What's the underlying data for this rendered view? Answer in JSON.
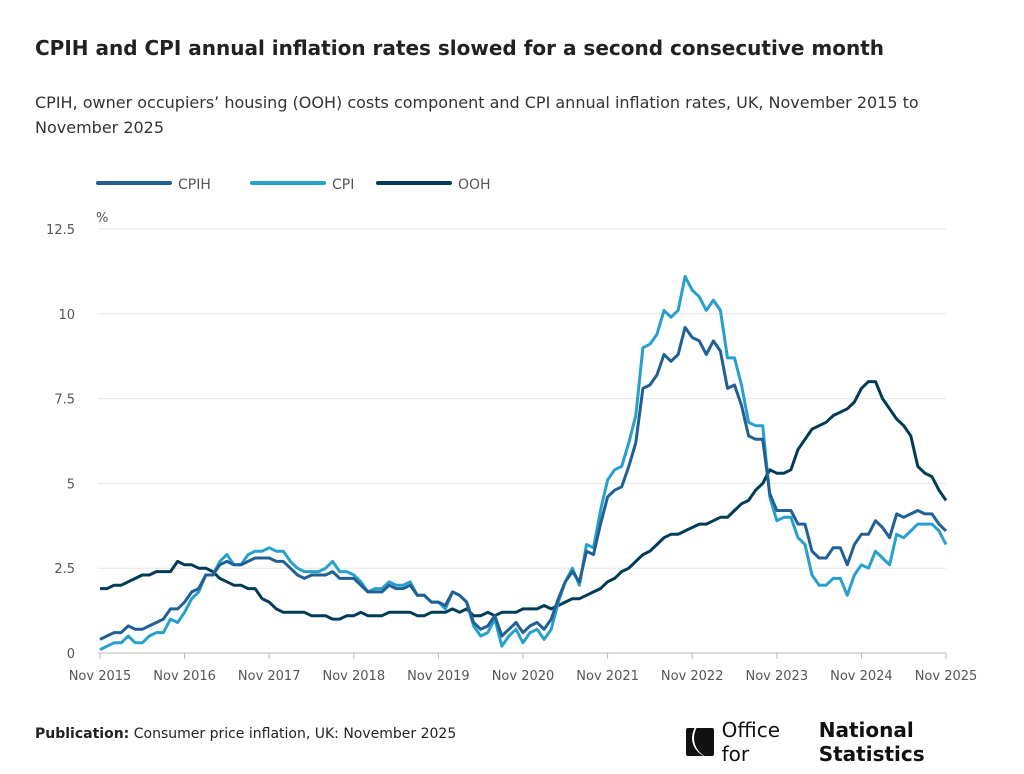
{
  "title": "CPIH and CPI annual inflation rates slowed for a second consecutive month",
  "subtitle": "CPIH, owner occupiers’ housing (OOH) costs component and CPI annual inflation rates, UK, November 2015 to November 2025",
  "footer": {
    "label": "Publication:",
    "text": "Consumer price inflation, UK: November 2025"
  },
  "logo": {
    "regular": "Office for",
    "bold": "National Statistics"
  },
  "chart_data": {
    "type": "line",
    "ylabel": "%",
    "ylim": [
      0,
      12.5
    ],
    "yticks": [
      "0",
      "2.5",
      "5",
      "7.5",
      "10",
      "12.5"
    ],
    "ytick_values": [
      0,
      2.5,
      5,
      7.5,
      10,
      12.5
    ],
    "xticks": [
      "Nov 2015",
      "Nov 2016",
      "Nov 2017",
      "Nov 2018",
      "Nov 2019",
      "Nov 2020",
      "Nov 2021",
      "Nov 2022",
      "Nov 2023",
      "Nov 2024",
      "Nov 2025"
    ],
    "x_start": "Nov 2015",
    "x_end": "Nov 2025",
    "frequency": "monthly",
    "grid": true,
    "legend_position": "top-left",
    "series": [
      {
        "name": "CPIH",
        "color": "#206095",
        "values": [
          0.4,
          0.5,
          0.6,
          0.6,
          0.8,
          0.7,
          0.7,
          0.8,
          0.9,
          1.0,
          1.3,
          1.3,
          1.5,
          1.8,
          1.9,
          2.3,
          2.3,
          2.6,
          2.7,
          2.6,
          2.6,
          2.7,
          2.8,
          2.8,
          2.8,
          2.7,
          2.7,
          2.5,
          2.3,
          2.2,
          2.3,
          2.3,
          2.3,
          2.4,
          2.2,
          2.2,
          2.2,
          2.0,
          1.8,
          1.8,
          1.8,
          2.0,
          1.9,
          1.9,
          2.0,
          1.7,
          1.7,
          1.5,
          1.5,
          1.4,
          1.8,
          1.7,
          1.5,
          0.9,
          0.7,
          0.8,
          1.1,
          0.5,
          0.7,
          0.9,
          0.6,
          0.8,
          0.9,
          0.7,
          1.0,
          1.6,
          2.1,
          2.4,
          2.1,
          3.0,
          2.9,
          3.8,
          4.6,
          4.8,
          4.9,
          5.5,
          6.2,
          7.8,
          7.9,
          8.2,
          8.8,
          8.6,
          8.8,
          9.6,
          9.3,
          9.2,
          8.8,
          9.2,
          8.9,
          7.8,
          7.9,
          7.3,
          6.4,
          6.3,
          6.3,
          4.7,
          4.2,
          4.2,
          4.2,
          3.8,
          3.8,
          3.0,
          2.8,
          2.8,
          3.1,
          3.1,
          2.6,
          3.2,
          3.5,
          3.5,
          3.9,
          3.7,
          3.4,
          4.1,
          4.0,
          4.1,
          4.2,
          4.1,
          4.1,
          3.8,
          3.6
        ]
      },
      {
        "name": "CPI",
        "color": "#27a0cc",
        "values": [
          0.1,
          0.2,
          0.3,
          0.3,
          0.5,
          0.3,
          0.3,
          0.5,
          0.6,
          0.6,
          1.0,
          0.9,
          1.2,
          1.6,
          1.8,
          2.3,
          2.3,
          2.7,
          2.9,
          2.6,
          2.6,
          2.9,
          3.0,
          3.0,
          3.1,
          3.0,
          3.0,
          2.7,
          2.5,
          2.4,
          2.4,
          2.4,
          2.5,
          2.7,
          2.4,
          2.4,
          2.3,
          2.1,
          1.8,
          1.9,
          1.9,
          2.1,
          2.0,
          2.0,
          2.1,
          1.7,
          1.7,
          1.5,
          1.5,
          1.3,
          1.8,
          1.7,
          1.5,
          0.8,
          0.5,
          0.6,
          1.0,
          0.2,
          0.5,
          0.7,
          0.3,
          0.6,
          0.7,
          0.4,
          0.7,
          1.5,
          2.1,
          2.5,
          2.0,
          3.2,
          3.1,
          4.2,
          5.1,
          5.4,
          5.5,
          6.2,
          7.0,
          9.0,
          9.1,
          9.4,
          10.1,
          9.9,
          10.1,
          11.1,
          10.7,
          10.5,
          10.1,
          10.4,
          10.1,
          8.7,
          8.7,
          7.9,
          6.8,
          6.7,
          6.7,
          4.6,
          3.9,
          4.0,
          4.0,
          3.4,
          3.2,
          2.3,
          2.0,
          2.0,
          2.2,
          2.2,
          1.7,
          2.3,
          2.6,
          2.5,
          3.0,
          2.8,
          2.6,
          3.5,
          3.4,
          3.6,
          3.8,
          3.8,
          3.8,
          3.6,
          3.2
        ]
      },
      {
        "name": "OOH",
        "color": "#003c57",
        "values": [
          1.9,
          1.9,
          2.0,
          2.0,
          2.1,
          2.2,
          2.3,
          2.3,
          2.4,
          2.4,
          2.4,
          2.7,
          2.6,
          2.6,
          2.5,
          2.5,
          2.4,
          2.2,
          2.1,
          2.0,
          2.0,
          1.9,
          1.9,
          1.6,
          1.5,
          1.3,
          1.2,
          1.2,
          1.2,
          1.2,
          1.1,
          1.1,
          1.1,
          1.0,
          1.0,
          1.1,
          1.1,
          1.2,
          1.1,
          1.1,
          1.1,
          1.2,
          1.2,
          1.2,
          1.2,
          1.1,
          1.1,
          1.2,
          1.2,
          1.2,
          1.3,
          1.2,
          1.3,
          1.1,
          1.1,
          1.2,
          1.1,
          1.2,
          1.2,
          1.2,
          1.3,
          1.3,
          1.3,
          1.4,
          1.3,
          1.4,
          1.5,
          1.6,
          1.6,
          1.7,
          1.8,
          1.9,
          2.1,
          2.2,
          2.4,
          2.5,
          2.7,
          2.9,
          3.0,
          3.2,
          3.4,
          3.5,
          3.5,
          3.6,
          3.7,
          3.8,
          3.8,
          3.9,
          4.0,
          4.0,
          4.2,
          4.4,
          4.5,
          4.8,
          5.0,
          5.4,
          5.3,
          5.3,
          5.4,
          6.0,
          6.3,
          6.6,
          6.7,
          6.8,
          7.0,
          7.1,
          7.2,
          7.4,
          7.8,
          8.0,
          8.0,
          7.5,
          7.2,
          6.9,
          6.7,
          6.4,
          5.5,
          5.3,
          5.2,
          4.8,
          4.5
        ]
      }
    ]
  }
}
